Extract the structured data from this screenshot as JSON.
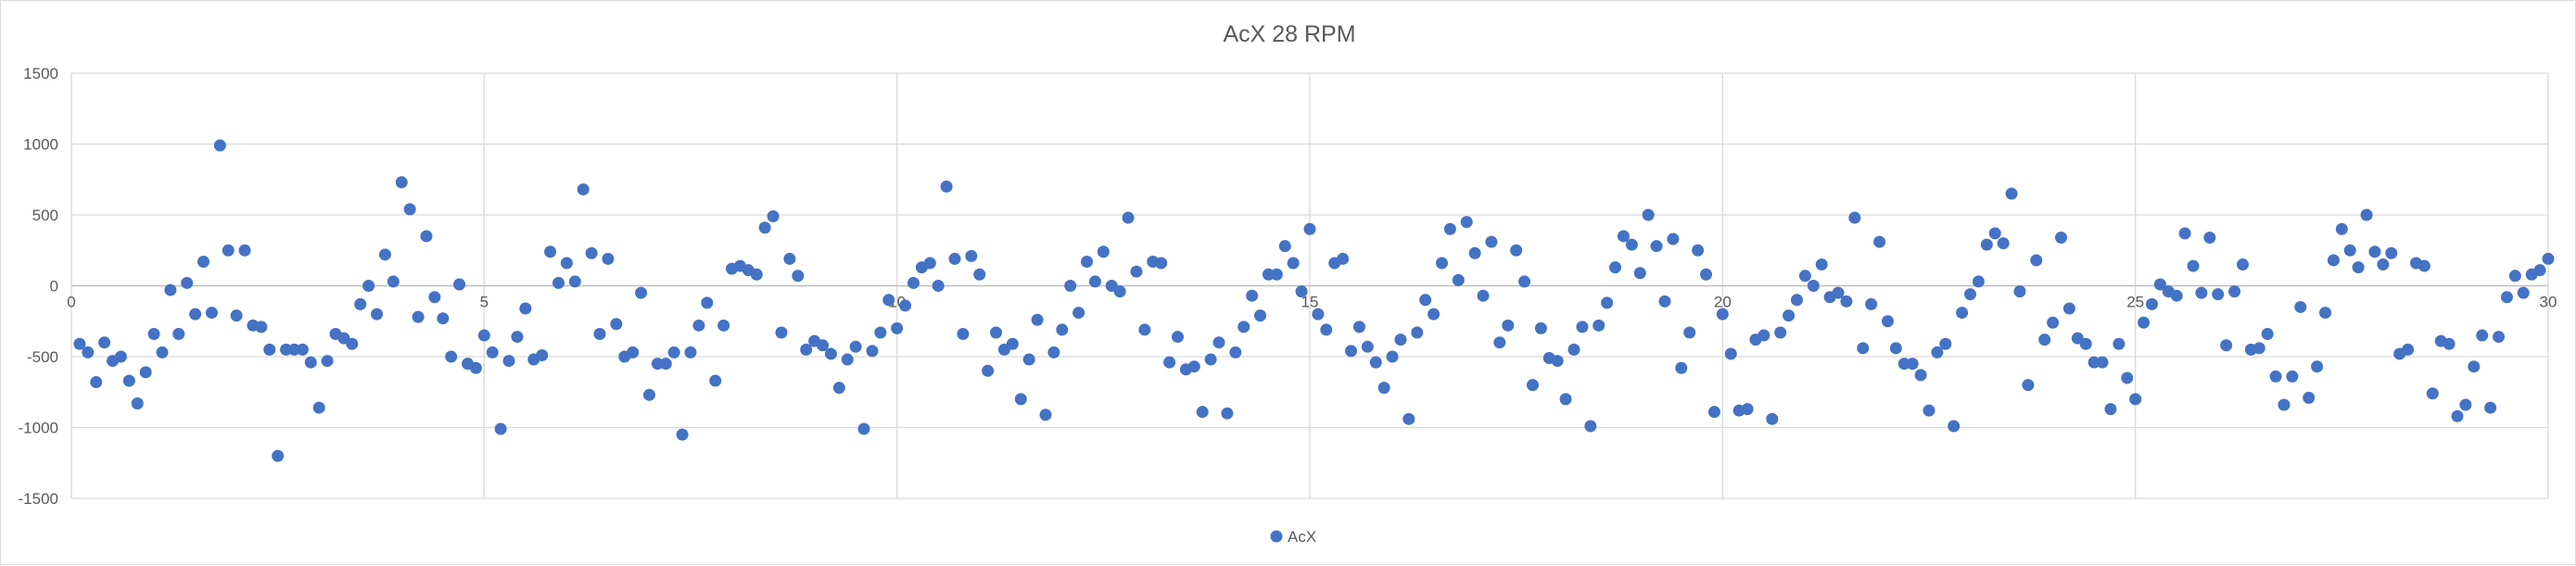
{
  "chart_data": {
    "type": "scatter",
    "title": "AcX 28 RPM",
    "xlabel": "",
    "ylabel": "",
    "xlim": [
      0,
      30
    ],
    "ylim": [
      -1500,
      1500
    ],
    "x_ticks": [
      0,
      5,
      10,
      15,
      20,
      25,
      30
    ],
    "y_ticks": [
      1500,
      1000,
      500,
      0,
      -500,
      -1000,
      -1500
    ],
    "x_tick_labels": [
      "0",
      "5",
      "10",
      "15",
      "20",
      "25",
      "30"
    ],
    "y_tick_labels": [
      "1500",
      "1000",
      "500",
      "0",
      "-500",
      "-1000",
      "-1500"
    ],
    "grid": true,
    "legend_position": "bottom",
    "marker_color": "#4472C4",
    "series": [
      {
        "name": "AcX",
        "values": [
          -410,
          -470,
          -680,
          -400,
          -530,
          -500,
          -670,
          -830,
          -610,
          -340,
          -470,
          -30,
          -340,
          20,
          -200,
          170,
          -190,
          990,
          250,
          -210,
          250,
          -280,
          -290,
          -450,
          -1200,
          -450,
          -450,
          -450,
          -540,
          -860,
          -530,
          -340,
          -370,
          -410,
          -130,
          0,
          -200,
          220,
          30,
          730,
          540,
          -220,
          350,
          -80,
          -230,
          -500,
          10,
          -550,
          -580,
          -350,
          -470,
          -1010,
          -530,
          -360,
          -160,
          -520,
          -490,
          240,
          20,
          160,
          30,
          680,
          230,
          -340,
          190,
          -270,
          -500,
          -470,
          -50,
          -770,
          -550,
          -550,
          -470,
          -1050,
          -470,
          -280,
          -120,
          -670,
          -280,
          120,
          140,
          110,
          80,
          410,
          490,
          -330,
          190,
          70,
          -450,
          -390,
          -420,
          -480,
          -720,
          -520,
          -430,
          -1010,
          -460,
          -330,
          -100,
          -300,
          -140,
          20,
          130,
          160,
          0,
          700,
          190,
          -340,
          210,
          80,
          -600,
          -330,
          -450,
          -410,
          -800,
          -520,
          -240,
          -910,
          -470,
          -310,
          0,
          -190,
          170,
          30,
          240,
          0,
          -40,
          480,
          100,
          -310,
          170,
          160,
          -540,
          -360,
          -590,
          -570,
          -890,
          -520,
          -400,
          -900,
          -470,
          -290,
          -70,
          -210,
          80,
          80,
          280,
          160,
          -40,
          400,
          -200,
          -310,
          160,
          190,
          -460,
          -290,
          -430,
          -540,
          -720,
          -500,
          -380,
          -940,
          -330,
          -100,
          -200,
          160,
          400,
          40,
          450,
          230,
          -70,
          310,
          -400,
          -280,
          250,
          30,
          -700,
          -300,
          -510,
          -530,
          -800,
          -450,
          -290,
          -990,
          -280,
          -120,
          130,
          350,
          290,
          90,
          500,
          280,
          -110,
          330,
          -580,
          -330,
          250,
          80,
          -890,
          -200,
          -480,
          -880,
          -870,
          -380,
          -350,
          -940,
          -330,
          -210,
          -100,
          70,
          0,
          150,
          -80,
          -50,
          -110,
          480,
          -440,
          -130,
          310,
          -250,
          -440,
          -550,
          -550,
          -630,
          -880,
          -470,
          -410,
          -990,
          -190,
          -60,
          30,
          290,
          370,
          300,
          650,
          -40,
          -700,
          180,
          -380,
          -260,
          340,
          -160,
          -370,
          -410,
          -540,
          -540,
          -870,
          -410,
          -650,
          -800,
          -260,
          -130,
          10,
          -40,
          -70,
          370,
          140,
          -50,
          340,
          -60,
          -420,
          -40,
          150,
          -450,
          -440,
          -340,
          -640,
          -840,
          -640,
          -150,
          -790,
          -570,
          -190,
          180,
          400,
          250,
          130,
          500,
          240,
          150,
          230,
          -480,
          -450,
          160,
          140,
          -760,
          -390,
          -410,
          -920,
          -840,
          -570,
          -350,
          -860,
          -360,
          -80,
          70,
          -50,
          80,
          110,
          190
        ]
      }
    ]
  }
}
